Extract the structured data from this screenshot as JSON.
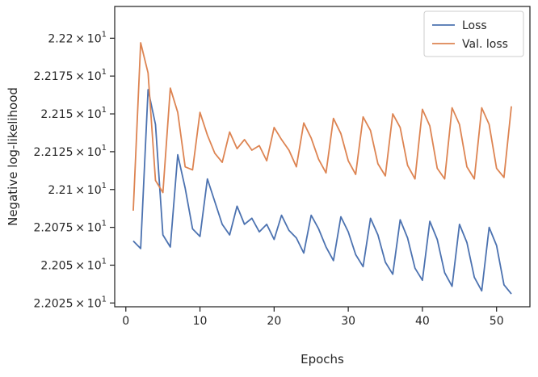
{
  "chart_data": {
    "type": "line",
    "xlabel": "Epochs",
    "ylabel": "Negative log-likelihood",
    "xlim": [
      -1.5,
      54.5
    ],
    "ylim": [
      22.0225,
      22.221
    ],
    "x_ticks": [
      0,
      10,
      20,
      30,
      40,
      50
    ],
    "x_tick_labels": [
      "0",
      "10",
      "20",
      "30",
      "40",
      "50"
    ],
    "y_ticks": [
      22.025,
      22.05,
      22.075,
      22.1,
      22.125,
      22.15,
      22.175,
      22.2
    ],
    "y_tick_mantissas": [
      "2.2025",
      "2.205",
      "2.2075",
      "2.21",
      "2.2125",
      "2.215",
      "2.2175",
      "2.22"
    ],
    "y_tick_base": "10",
    "y_tick_exp": "1",
    "grid": false,
    "legend_position": "upper right",
    "series": [
      {
        "name": "Loss",
        "color": "#4c72b0",
        "x": [
          1,
          2,
          3,
          4,
          5,
          6,
          7,
          8,
          9,
          10,
          11,
          12,
          13,
          14,
          15,
          16,
          17,
          18,
          19,
          20,
          21,
          22,
          23,
          24,
          25,
          26,
          27,
          28,
          29,
          30,
          31,
          32,
          33,
          34,
          35,
          36,
          37,
          38,
          39,
          40,
          41,
          42,
          43,
          44,
          45,
          46,
          47,
          48,
          49,
          50,
          51,
          52
        ],
        "values": [
          22.066,
          22.061,
          22.166,
          22.143,
          22.07,
          22.062,
          22.123,
          22.101,
          22.074,
          22.069,
          22.107,
          22.092,
          22.077,
          22.07,
          22.089,
          22.077,
          22.081,
          22.072,
          22.077,
          22.067,
          22.083,
          22.073,
          22.068,
          22.058,
          22.083,
          22.074,
          22.062,
          22.053,
          22.082,
          22.072,
          22.057,
          22.049,
          22.081,
          22.07,
          22.052,
          22.044,
          22.08,
          22.068,
          22.048,
          22.04,
          22.079,
          22.067,
          22.045,
          22.036,
          22.077,
          22.065,
          22.042,
          22.033,
          22.075,
          22.063,
          22.037,
          22.031
        ]
      },
      {
        "name": "Val. loss",
        "color": "#dd8452",
        "x": [
          1,
          2,
          3,
          4,
          5,
          6,
          7,
          8,
          9,
          10,
          11,
          12,
          13,
          14,
          15,
          16,
          17,
          18,
          19,
          20,
          21,
          22,
          23,
          24,
          25,
          26,
          27,
          28,
          29,
          30,
          31,
          32,
          33,
          34,
          35,
          36,
          37,
          38,
          39,
          40,
          41,
          42,
          43,
          44,
          45,
          46,
          47,
          48,
          49,
          50,
          51,
          52
        ],
        "values": [
          22.086,
          22.197,
          22.177,
          22.106,
          22.098,
          22.167,
          22.151,
          22.115,
          22.113,
          22.151,
          22.136,
          22.124,
          22.118,
          22.138,
          22.127,
          22.133,
          22.126,
          22.129,
          22.119,
          22.141,
          22.133,
          22.126,
          22.115,
          22.144,
          22.134,
          22.12,
          22.111,
          22.147,
          22.137,
          22.119,
          22.11,
          22.148,
          22.139,
          22.117,
          22.109,
          22.15,
          22.141,
          22.116,
          22.107,
          22.153,
          22.142,
          22.114,
          22.107,
          22.154,
          22.143,
          22.115,
          22.107,
          22.154,
          22.143,
          22.114,
          22.108,
          22.155
        ]
      }
    ]
  }
}
